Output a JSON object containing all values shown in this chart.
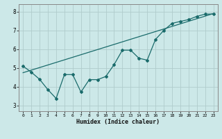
{
  "xlabel": "Humidex (Indice chaleur)",
  "xlim": [
    -0.5,
    23.5
  ],
  "ylim": [
    2.7,
    8.4
  ],
  "xticks": [
    0,
    1,
    2,
    3,
    4,
    5,
    6,
    7,
    8,
    9,
    10,
    11,
    12,
    13,
    14,
    15,
    16,
    17,
    18,
    19,
    20,
    21,
    22,
    23
  ],
  "yticks": [
    3,
    4,
    5,
    6,
    7,
    8
  ],
  "bg_color": "#cce8e8",
  "line_color": "#1a6b6b",
  "grid_color": "#b0cccc",
  "zigzag_x": [
    0,
    1,
    2,
    3,
    4,
    5,
    6,
    7,
    8,
    9,
    10,
    11,
    12,
    13,
    14,
    15,
    16,
    17,
    18,
    19,
    20,
    21,
    22,
    23
  ],
  "zigzag_y": [
    5.1,
    4.78,
    4.4,
    3.85,
    3.38,
    4.65,
    4.65,
    3.72,
    4.38,
    4.38,
    4.55,
    5.18,
    5.95,
    5.95,
    5.52,
    5.42,
    6.52,
    7.0,
    7.38,
    7.48,
    7.58,
    7.75,
    7.87,
    7.88
  ],
  "trend_x": [
    0,
    23
  ],
  "trend_y": [
    4.75,
    7.9
  ]
}
